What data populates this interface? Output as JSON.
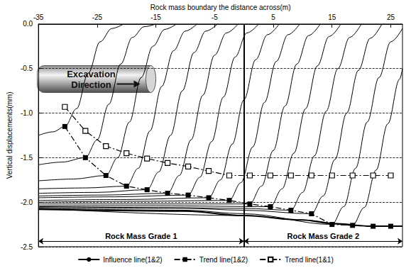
{
  "chart_data": {
    "type": "line",
    "x_label": "Rock mass boundary the distance across(m)",
    "y_label": "Vertical displacements(mm)",
    "xlim": [
      -35,
      27
    ],
    "xticks": [
      -35,
      -25,
      -15,
      -5,
      5,
      15,
      25
    ],
    "ylim": [
      -2.5,
      0
    ],
    "yticks": [
      {
        "value": 0,
        "label": "0.0"
      },
      -0.5,
      {
        "value": -1.0,
        "label": "-1.0"
      },
      -1.5,
      {
        "value": -2.0,
        "label": "-2.0"
      },
      -2.5
    ],
    "grid": "y",
    "legend": "bottom",
    "vlines": [
      0
    ],
    "annotations": {
      "excavation": "Excavation Direction",
      "regions": [
        {
          "label": "Rock Mass Grade 1",
          "x": [
            -35,
            0
          ]
        },
        {
          "label": "Rock Mass Grade 2",
          "x": [
            0,
            27
          ]
        }
      ]
    },
    "series": [
      {
        "name": "Influence line(1&2)",
        "color": "#000000",
        "line_style": "solid",
        "marker": "none",
        "curves": [
          {
            "x": [
              -35,
              -32.5,
              -30.5,
              -28.5,
              -26.5,
              -24.5,
              -22.5,
              -20.5
            ],
            "values": [
              -1.25,
              -1.21,
              -1.15,
              -0.95,
              -0.55,
              -0.2,
              -0.05,
              0
            ]
          },
          {
            "x": [
              -35,
              -31,
              -27,
              -25,
              -23,
              -21,
              -19,
              -17,
              -15
            ],
            "values": [
              -1.58,
              -1.55,
              -1.5,
              -1.3,
              -0.9,
              -0.45,
              -0.15,
              -0.03,
              0
            ]
          },
          {
            "x": [
              -35,
              -29,
              -23.5,
              -21.5,
              -19.5,
              -17.5,
              -15.5,
              -13.5,
              -11.5
            ],
            "values": [
              -1.76,
              -1.74,
              -1.7,
              -1.5,
              -1.1,
              -0.6,
              -0.25,
              -0.06,
              0
            ]
          },
          {
            "x": [
              -35,
              -27,
              -20,
              -18,
              -16,
              -14,
              -12,
              -10,
              -8
            ],
            "values": [
              -1.85,
              -1.84,
              -1.82,
              -1.62,
              -1.2,
              -0.7,
              -0.3,
              -0.08,
              0
            ]
          },
          {
            "x": [
              -35,
              -25,
              -16.5,
              -14.5,
              -12.5,
              -10.5,
              -8.5,
              -6.5,
              -4.5
            ],
            "values": [
              -1.9,
              -1.89,
              -1.86,
              -1.66,
              -1.25,
              -0.75,
              -0.32,
              -0.08,
              0
            ]
          },
          {
            "x": [
              -35,
              -24,
              -13,
              -11,
              -9,
              -7,
              -5,
              -3,
              -1
            ],
            "values": [
              -1.93,
              -1.92,
              -1.9,
              -1.7,
              -1.3,
              -0.8,
              -0.35,
              -0.1,
              0
            ]
          },
          {
            "x": [
              -35,
              -22,
              -9.5,
              -7.5,
              -5.5,
              -3.5,
              -1.5,
              0.5,
              2.5
            ],
            "values": [
              -1.95,
              -1.94,
              -1.92,
              -1.72,
              -1.32,
              -0.82,
              -0.37,
              -0.1,
              0
            ]
          },
          {
            "x": [
              -35,
              -20,
              -6,
              -4,
              -2,
              0,
              2,
              4,
              6
            ],
            "values": [
              -1.98,
              -1.97,
              -1.95,
              -1.75,
              -1.35,
              -0.85,
              -0.4,
              -0.12,
              0
            ]
          },
          {
            "x": [
              -35,
              -18,
              -2.5,
              -0.5,
              1.5,
              3.5,
              5.5,
              7.5,
              9.5
            ],
            "values": [
              -2,
              -1.99,
              -1.98,
              -1.78,
              -1.38,
              -0.88,
              -0.42,
              -0.12,
              0
            ]
          },
          {
            "x": [
              -35,
              -17,
              1,
              3,
              5,
              7,
              9,
              11,
              13
            ],
            "values": [
              -2.02,
              -2.02,
              -2.02,
              -1.82,
              -1.42,
              -0.92,
              -0.45,
              -0.13,
              0
            ]
          },
          {
            "x": [
              -35,
              -15,
              4.5,
              6.5,
              8.5,
              10.5,
              12.5,
              14.5,
              16.5
            ],
            "values": [
              -2.04,
              -2.04,
              -2.05,
              -1.85,
              -1.45,
              -0.95,
              -0.47,
              -0.14,
              0
            ]
          },
          {
            "x": [
              -35,
              -13,
              0,
              8,
              10,
              12,
              14,
              16,
              18,
              20
            ],
            "values": [
              -2.05,
              -2.06,
              -2.07,
              -2.09,
              -1.89,
              -1.48,
              -0.98,
              -0.5,
              -0.15,
              0
            ]
          },
          {
            "x": [
              -35,
              -10,
              0,
              11.5,
              13.5,
              15.5,
              17.5,
              19.5,
              21.5,
              23.5
            ],
            "values": [
              -2.06,
              -2.07,
              -2.09,
              -2.13,
              -1.93,
              -1.52,
              -1,
              -0.52,
              -0.16,
              0
            ]
          },
          {
            "x": [
              -35,
              -10,
              0,
              15,
              17,
              19,
              21,
              23,
              25,
              27
            ],
            "values": [
              -2.07,
              -2.09,
              -2.13,
              -2.25,
              -2.05,
              -1.62,
              -1.1,
              -0.6,
              -0.2,
              -0.05
            ]
          },
          {
            "x": [
              -35,
              0,
              10,
              18.5,
              20.5,
              22.5,
              24.5,
              26.5,
              27
            ],
            "values": [
              -2.07,
              -2.15,
              -2.2,
              -2.26,
              -2.06,
              -1.64,
              -1.12,
              -0.62,
              -0.5
            ]
          },
          {
            "x": [
              -35,
              -10,
              0,
              10,
              15,
              22,
              25,
              27
            ],
            "values": [
              -2.08,
              -2.1,
              -2.15,
              -2.2,
              -2.24,
              -2.27,
              -2.27,
              -2.27
            ]
          }
        ]
      },
      {
        "name": "Trend line(1&2)",
        "color": "#000000",
        "line_style": "dashdot",
        "marker": "filled_square",
        "x": [
          -30.5,
          -27,
          -23.5,
          -20,
          -16.5,
          -13,
          -9.5,
          -6,
          -2.5,
          1,
          4.5,
          8,
          11.5,
          15,
          18.5,
          22,
          25
        ],
        "values": [
          -1.15,
          -1.5,
          -1.7,
          -1.82,
          -1.86,
          -1.9,
          -1.92,
          -1.95,
          -1.98,
          -2.02,
          -2.05,
          -2.09,
          -2.13,
          -2.25,
          -2.26,
          -2.27,
          -2.27
        ]
      },
      {
        "name": "Trend line(1&1)",
        "color": "#000000",
        "line_style": "dashdot",
        "marker": "open_square",
        "x": [
          -30.5,
          -27,
          -23.5,
          -20,
          -16.5,
          -13,
          -9.5,
          -6,
          -2.5,
          1,
          4.5,
          8,
          11.5,
          15,
          18.5,
          22,
          25
        ],
        "values": [
          -0.93,
          -1.2,
          -1.37,
          -1.45,
          -1.51,
          -1.56,
          -1.6,
          -1.65,
          -1.7,
          -1.7,
          -1.7,
          -1.7,
          -1.7,
          -1.7,
          -1.7,
          -1.7,
          -1.7
        ]
      }
    ]
  }
}
